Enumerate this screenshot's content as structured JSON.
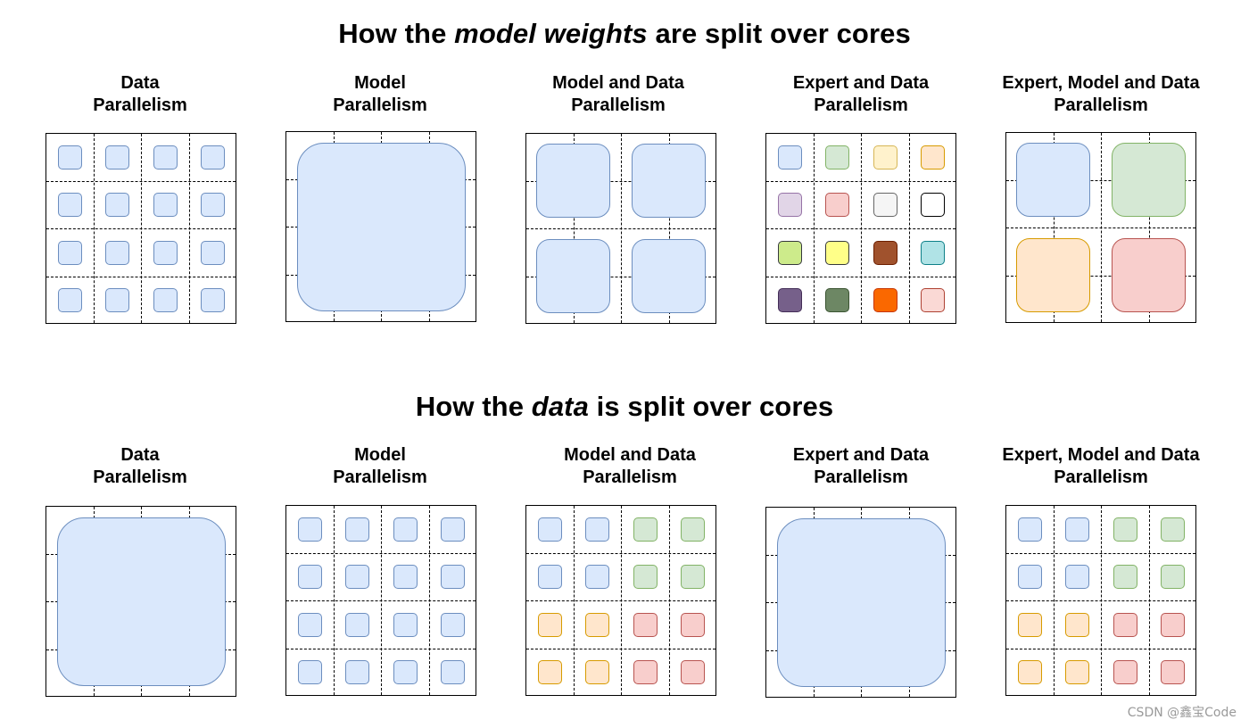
{
  "sections": [
    {
      "title_before": "How the ",
      "title_emphasis": "model weights",
      "title_after": " are split over cores",
      "panels": [
        {
          "label": "Data\nParallelism",
          "blocks": {
            "layout": "each",
            "colors": [
              [
                "blue",
                "blue",
                "blue",
                "blue"
              ],
              [
                "blue",
                "blue",
                "blue",
                "blue"
              ],
              [
                "blue",
                "blue",
                "blue",
                "blue"
              ],
              [
                "blue",
                "blue",
                "blue",
                "blue"
              ]
            ]
          }
        },
        {
          "label": "Model\nParallelism",
          "blocks": {
            "layout": "whole",
            "colors": [
              [
                "blue"
              ]
            ]
          }
        },
        {
          "label": "Model and Data\nParallelism",
          "blocks": {
            "layout": "quad",
            "colors": [
              [
                "blue",
                "blue"
              ],
              [
                "blue",
                "blue"
              ]
            ]
          }
        },
        {
          "label": "Expert and Data\nParallelism",
          "blocks": {
            "layout": "each",
            "colors": [
              [
                "blue",
                "green",
                "yellow",
                "orange"
              ],
              [
                "purple",
                "red",
                "gray",
                "white"
              ],
              [
                "lime",
                "brightyellow",
                "brown",
                "cyan"
              ],
              [
                "darkpurple",
                "darkgreen",
                "brightorange",
                "pink"
              ]
            ]
          }
        },
        {
          "label": "Expert, Model and Data\nParallelism",
          "blocks": {
            "layout": "quad",
            "colors": [
              [
                "blue",
                "green"
              ],
              [
                "orange",
                "red"
              ]
            ]
          }
        }
      ]
    },
    {
      "title_before": "How the ",
      "title_emphasis": "data",
      "title_after": " is split over cores",
      "panels": [
        {
          "label": "Data\nParallelism",
          "blocks": {
            "layout": "whole",
            "colors": [
              [
                "blue"
              ]
            ]
          }
        },
        {
          "label": "Model\nParallelism",
          "blocks": {
            "layout": "each",
            "colors": [
              [
                "blue",
                "blue",
                "blue",
                "blue"
              ],
              [
                "blue",
                "blue",
                "blue",
                "blue"
              ],
              [
                "blue",
                "blue",
                "blue",
                "blue"
              ],
              [
                "blue",
                "blue",
                "blue",
                "blue"
              ]
            ]
          }
        },
        {
          "label": "Model and Data\nParallelism",
          "blocks": {
            "layout": "each",
            "colors": [
              [
                "blue",
                "blue",
                "green",
                "green"
              ],
              [
                "blue",
                "blue",
                "green",
                "green"
              ],
              [
                "orange",
                "orange",
                "red",
                "red"
              ],
              [
                "orange",
                "orange",
                "red",
                "red"
              ]
            ]
          }
        },
        {
          "label": "Expert and Data\nParallelism",
          "blocks": {
            "layout": "whole",
            "colors": [
              [
                "blue"
              ]
            ]
          }
        },
        {
          "label": "Expert, Model and Data\nParallelism",
          "blocks": {
            "layout": "each",
            "colors": [
              [
                "blue",
                "blue",
                "green",
                "green"
              ],
              [
                "blue",
                "blue",
                "green",
                "green"
              ],
              [
                "orange",
                "orange",
                "red",
                "red"
              ],
              [
                "orange",
                "orange",
                "red",
                "red"
              ]
            ]
          }
        }
      ]
    }
  ],
  "palette": {
    "blue": {
      "fill": "#dae8fc",
      "stroke": "#6c8ebf"
    },
    "green": {
      "fill": "#d5e8d4",
      "stroke": "#82b366"
    },
    "yellow": {
      "fill": "#fff2cc",
      "stroke": "#d6b656"
    },
    "orange": {
      "fill": "#ffe6cc",
      "stroke": "#d79b00"
    },
    "purple": {
      "fill": "#e1d5e7",
      "stroke": "#9673a6"
    },
    "red": {
      "fill": "#f8cecc",
      "stroke": "#b85450"
    },
    "gray": {
      "fill": "#f5f5f5",
      "stroke": "#666666"
    },
    "white": {
      "fill": "#ffffff",
      "stroke": "#000000"
    },
    "lime": {
      "fill": "#cdeb8b",
      "stroke": "#36393d"
    },
    "brightyellow": {
      "fill": "#ffff88",
      "stroke": "#36393d"
    },
    "brown": {
      "fill": "#a0522d",
      "stroke": "#6d1f00"
    },
    "cyan": {
      "fill": "#b0e3e6",
      "stroke": "#0e8088"
    },
    "darkpurple": {
      "fill": "#76608a",
      "stroke": "#432d57"
    },
    "darkgreen": {
      "fill": "#6d8764",
      "stroke": "#3a5431"
    },
    "brightorange": {
      "fill": "#fa6800",
      "stroke": "#c73500"
    },
    "pink": {
      "fill": "#fad9d5",
      "stroke": "#ae4132"
    }
  },
  "watermark": "CSDN @鑫宝Code"
}
